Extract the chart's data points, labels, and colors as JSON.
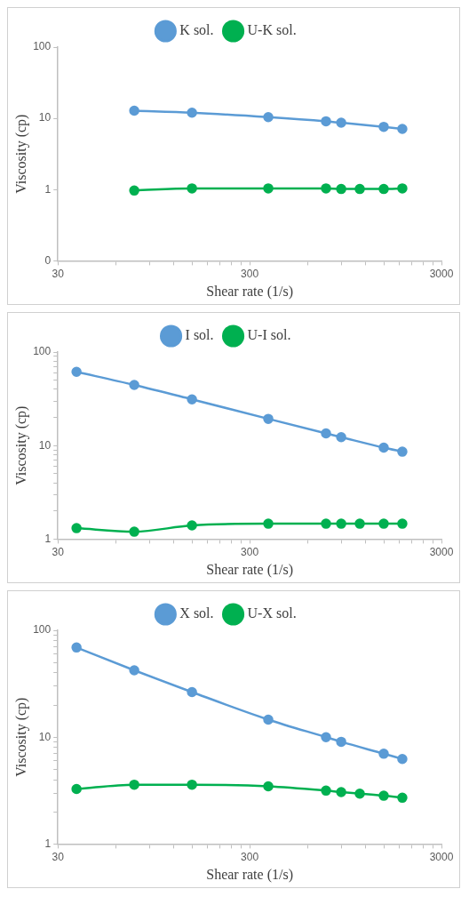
{
  "chart_data": [
    {
      "type": "line",
      "xlabel": "Shear rate (1/s)",
      "ylabel": "Viscosity (cp)",
      "log": "xy",
      "legend": "top",
      "marker": "circle",
      "line_style": "solid",
      "xlim": [
        30,
        3000
      ],
      "xticks": [
        30,
        {
          "value": 60,
          "label": null
        },
        {
          "value": 90,
          "label": null
        },
        {
          "value": 120,
          "label": null
        },
        {
          "value": 150,
          "label": null
        },
        {
          "value": 180,
          "label": null
        },
        {
          "value": 210,
          "label": null
        },
        {
          "value": 240,
          "label": null
        },
        {
          "value": 270,
          "label": null
        },
        300,
        {
          "value": 600,
          "label": null
        },
        {
          "value": 900,
          "label": null
        },
        {
          "value": 1200,
          "label": null
        },
        {
          "value": 1500,
          "label": null
        },
        {
          "value": 1800,
          "label": null
        },
        {
          "value": 2100,
          "label": null
        },
        {
          "value": 2400,
          "label": null
        },
        {
          "value": 2700,
          "label": null
        },
        3000
      ],
      "ylim": [
        0.1,
        100
      ],
      "yticks": [
        {
          "value": 0.1,
          "label": "0"
        },
        1,
        10,
        100
      ],
      "series": [
        {
          "name": "K sol.",
          "color": "#5b9bd5",
          "x": [
            75,
            150,
            375,
            750,
            900,
            1500,
            1875
          ],
          "values": [
            12.8,
            12.0,
            10.4,
            9.1,
            8.7,
            7.6,
            7.1
          ]
        },
        {
          "name": "U-K sol.",
          "color": "#00b050",
          "x": [
            75,
            150,
            375,
            750,
            900,
            1125,
            1500,
            1875
          ],
          "values": [
            0.97,
            1.04,
            1.04,
            1.04,
            1.02,
            1.02,
            1.02,
            1.04
          ]
        }
      ]
    },
    {
      "type": "line",
      "xlabel": "Shear rate (1/s)",
      "ylabel": "Viscosity (cp)",
      "log": "xy",
      "legend": "top",
      "marker": "circle",
      "line_style": "solid",
      "xlim": [
        30,
        3000
      ],
      "xticks": [
        30,
        {
          "value": 60,
          "label": null
        },
        {
          "value": 90,
          "label": null
        },
        {
          "value": 120,
          "label": null
        },
        {
          "value": 150,
          "label": null
        },
        {
          "value": 180,
          "label": null
        },
        {
          "value": 210,
          "label": null
        },
        {
          "value": 240,
          "label": null
        },
        {
          "value": 270,
          "label": null
        },
        300,
        {
          "value": 600,
          "label": null
        },
        {
          "value": 900,
          "label": null
        },
        {
          "value": 1200,
          "label": null
        },
        {
          "value": 1500,
          "label": null
        },
        {
          "value": 1800,
          "label": null
        },
        {
          "value": 2100,
          "label": null
        },
        {
          "value": 2400,
          "label": null
        },
        {
          "value": 2700,
          "label": null
        },
        3000
      ],
      "ylim": [
        1,
        100
      ],
      "yticks": [
        1,
        {
          "value": 2,
          "label": null
        },
        {
          "value": 3,
          "label": null
        },
        {
          "value": 4,
          "label": null
        },
        {
          "value": 5,
          "label": null
        },
        {
          "value": 6,
          "label": null
        },
        {
          "value": 7,
          "label": null
        },
        {
          "value": 8,
          "label": null
        },
        {
          "value": 9,
          "label": null
        },
        10,
        {
          "value": 20,
          "label": null
        },
        {
          "value": 30,
          "label": null
        },
        {
          "value": 40,
          "label": null
        },
        {
          "value": 50,
          "label": null
        },
        {
          "value": 60,
          "label": null
        },
        {
          "value": 70,
          "label": null
        },
        {
          "value": 80,
          "label": null
        },
        {
          "value": 90,
          "label": null
        },
        100
      ],
      "series": [
        {
          "name": "I sol.",
          "color": "#5b9bd5",
          "x": [
            37.5,
            75,
            150,
            375,
            750,
            900,
            1500,
            1875
          ],
          "values": [
            61.4,
            44.5,
            31.2,
            19.3,
            13.5,
            12.3,
            9.5,
            8.6
          ]
        },
        {
          "name": "U-I sol.",
          "color": "#00b050",
          "x": [
            37.5,
            75,
            150,
            375,
            750,
            900,
            1125,
            1500,
            1875
          ],
          "values": [
            1.31,
            1.2,
            1.4,
            1.46,
            1.46,
            1.46,
            1.46,
            1.46,
            1.46
          ]
        }
      ]
    },
    {
      "type": "line",
      "xlabel": "Shear rate (1/s)",
      "ylabel": "Viscosity (cp)",
      "log": "xy",
      "legend": "top",
      "marker": "circle",
      "line_style": "solid",
      "xlim": [
        30,
        3000
      ],
      "xticks": [
        30,
        {
          "value": 60,
          "label": null
        },
        {
          "value": 90,
          "label": null
        },
        {
          "value": 120,
          "label": null
        },
        {
          "value": 150,
          "label": null
        },
        {
          "value": 180,
          "label": null
        },
        {
          "value": 210,
          "label": null
        },
        {
          "value": 240,
          "label": null
        },
        {
          "value": 270,
          "label": null
        },
        300,
        {
          "value": 600,
          "label": null
        },
        {
          "value": 900,
          "label": null
        },
        {
          "value": 1200,
          "label": null
        },
        {
          "value": 1500,
          "label": null
        },
        {
          "value": 1800,
          "label": null
        },
        {
          "value": 2100,
          "label": null
        },
        {
          "value": 2400,
          "label": null
        },
        {
          "value": 2700,
          "label": null
        },
        3000
      ],
      "ylim": [
        1,
        100
      ],
      "yticks": [
        1,
        {
          "value": 2,
          "label": null
        },
        {
          "value": 3,
          "label": null
        },
        {
          "value": 4,
          "label": null
        },
        {
          "value": 5,
          "label": null
        },
        {
          "value": 6,
          "label": null
        },
        {
          "value": 7,
          "label": null
        },
        {
          "value": 8,
          "label": null
        },
        {
          "value": 9,
          "label": null
        },
        10,
        {
          "value": 20,
          "label": null
        },
        {
          "value": 30,
          "label": null
        },
        {
          "value": 40,
          "label": null
        },
        {
          "value": 50,
          "label": null
        },
        {
          "value": 60,
          "label": null
        },
        {
          "value": 70,
          "label": null
        },
        {
          "value": 80,
          "label": null
        },
        {
          "value": 90,
          "label": null
        },
        100
      ],
      "series": [
        {
          "name": "X sol.",
          "color": "#5b9bd5",
          "x": [
            37.5,
            75,
            150,
            375,
            750,
            900,
            1500,
            1875
          ],
          "values": [
            69,
            42.2,
            26.4,
            14.6,
            10,
            9.05,
            7.0,
            6.25
          ]
        },
        {
          "name": "U-X sol.",
          "color": "#00b050",
          "x": [
            37.5,
            75,
            150,
            375,
            750,
            900,
            1125,
            1500,
            1875
          ],
          "values": [
            3.27,
            3.59,
            3.59,
            3.47,
            3.16,
            3.06,
            2.96,
            2.83,
            2.71
          ]
        }
      ]
    }
  ]
}
